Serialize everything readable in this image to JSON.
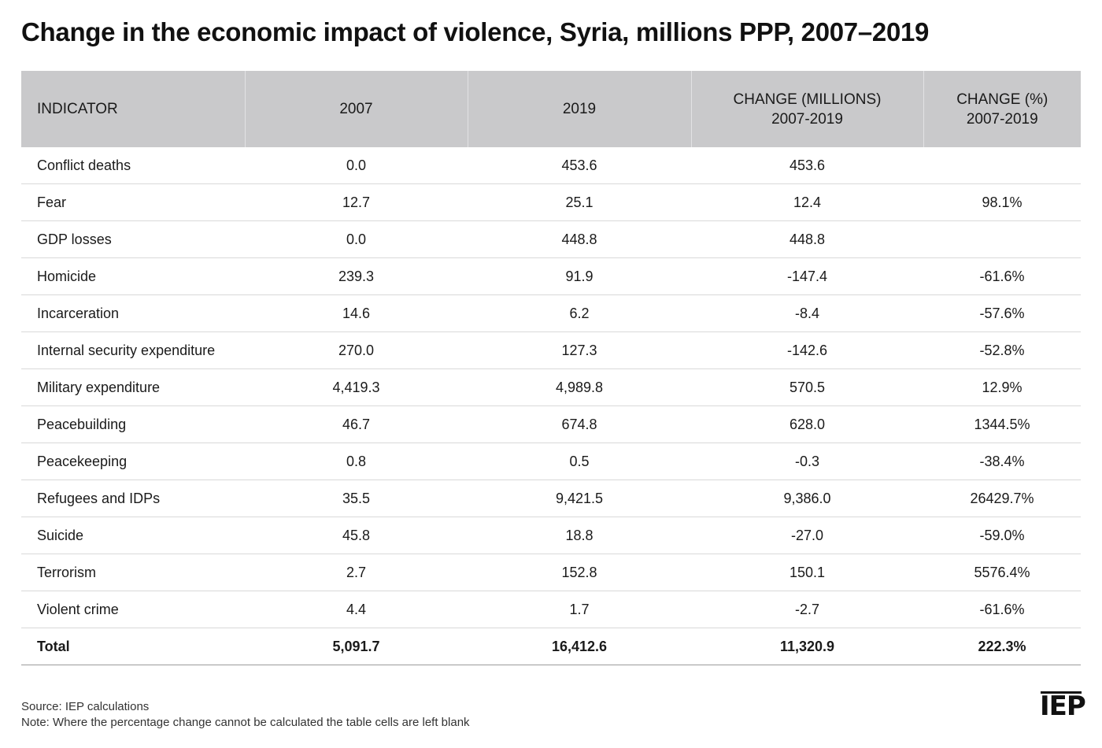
{
  "title": "Change in the economic impact of violence, Syria, millions PPP, 2007–2019",
  "table": {
    "headers": [
      {
        "line1": "INDICATOR",
        "line2": ""
      },
      {
        "line1": "2007",
        "line2": ""
      },
      {
        "line1": "2019",
        "line2": ""
      },
      {
        "line1": "CHANGE (MILLIONS)",
        "line2": "2007-2019"
      },
      {
        "line1": "CHANGE (%)",
        "line2": "2007-2019"
      }
    ],
    "rows": [
      {
        "indicator": "Conflict deaths",
        "y2007": "0.0",
        "y2019": "453.6",
        "change": "453.6",
        "change_pct": ""
      },
      {
        "indicator": "Fear",
        "y2007": "12.7",
        "y2019": "25.1",
        "change": "12.4",
        "change_pct": "98.1%"
      },
      {
        "indicator": "GDP losses",
        "y2007": "0.0",
        "y2019": "448.8",
        "change": "448.8",
        "change_pct": ""
      },
      {
        "indicator": "Homicide",
        "y2007": "239.3",
        "y2019": "91.9",
        "change": "-147.4",
        "change_pct": "-61.6%"
      },
      {
        "indicator": "Incarceration",
        "y2007": "14.6",
        "y2019": "6.2",
        "change": "-8.4",
        "change_pct": "-57.6%"
      },
      {
        "indicator": "Internal security expenditure",
        "y2007": "270.0",
        "y2019": "127.3",
        "change": "-142.6",
        "change_pct": "-52.8%"
      },
      {
        "indicator": "Military expenditure",
        "y2007": "4,419.3",
        "y2019": "4,989.8",
        "change": "570.5",
        "change_pct": "12.9%"
      },
      {
        "indicator": "Peacebuilding",
        "y2007": "46.7",
        "y2019": "674.8",
        "change": "628.0",
        "change_pct": "1344.5%"
      },
      {
        "indicator": "Peacekeeping",
        "y2007": "0.8",
        "y2019": "0.5",
        "change": "-0.3",
        "change_pct": "-38.4%"
      },
      {
        "indicator": "Refugees and IDPs",
        "y2007": "35.5",
        "y2019": "9,421.5",
        "change": "9,386.0",
        "change_pct": "26429.7%"
      },
      {
        "indicator": "Suicide",
        "y2007": "45.8",
        "y2019": "18.8",
        "change": "-27.0",
        "change_pct": "-59.0%"
      },
      {
        "indicator": "Terrorism",
        "y2007": "2.7",
        "y2019": "152.8",
        "change": "150.1",
        "change_pct": "5576.4%"
      },
      {
        "indicator": "Violent crime",
        "y2007": "4.4",
        "y2019": "1.7",
        "change": "-2.7",
        "change_pct": "-61.6%"
      }
    ],
    "total": {
      "indicator": "Total",
      "y2007": "5,091.7",
      "y2019": "16,412.6",
      "change": "11,320.9",
      "change_pct": "222.3%"
    }
  },
  "footnotes": {
    "source": "Source: IEP calculations",
    "note": "Note: Where the percentage change cannot be calculated the table cells are left blank"
  },
  "logo": "IEP",
  "colors": {
    "header_bg": "#c9c9cb",
    "row_divider": "#d9d9d9",
    "text": "#1a1a1a"
  }
}
